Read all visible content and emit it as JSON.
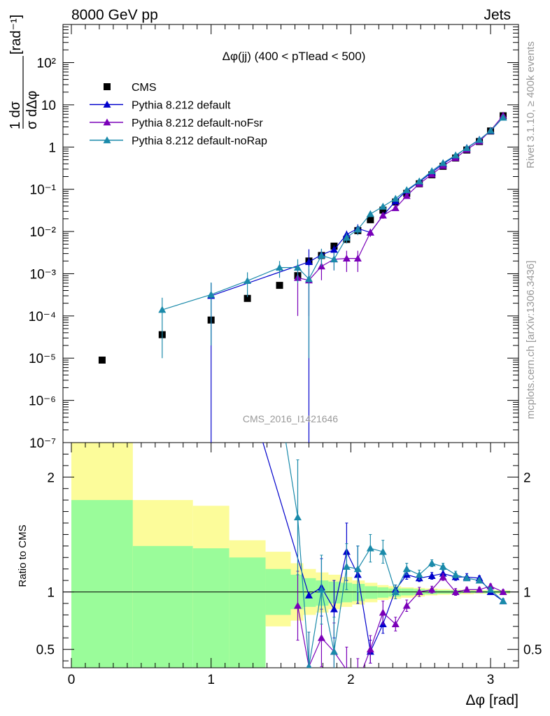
{
  "header": {
    "left": "8000 GeV pp",
    "right": "Jets",
    "side_top": "Rivet 3.1.10, ≥ 400k events",
    "side_bottom": "mcplots.cern.ch [arXiv:1306.3436]",
    "analysis": "CMS_2016_I1421646"
  },
  "colors": {
    "data": "#000000",
    "default": "#0000cc",
    "noFsr": "#7a00b8",
    "noRap": "#1a8aaa",
    "band_inner": "#9afc9a",
    "band_outer": "#fcfc9a"
  },
  "chart_data": {
    "type": "scatter",
    "title": "Δφ(jj) (400 < pTlead <  500)",
    "xlabel": "Δφ [rad]",
    "ylabel_main": "1/σ dσ/dΔφ [rad⁻¹]",
    "ylabel_num": "1 dσ",
    "ylabel_den": "σ dΔφ",
    "ylabel_unit": "[rad⁻¹]",
    "ylabel_ratio": "Ratio to CMS",
    "xlim": [
      -0.06,
      3.2
    ],
    "ylim": [
      1e-07,
      800
    ],
    "ylim_ratio": [
      0.34,
      2.3
    ],
    "yscale": "log",
    "x_ticks": [
      "0",
      "1",
      "2",
      "3"
    ],
    "y_ticks": [
      "10⁻⁷",
      "10⁻⁶",
      "10⁻⁵",
      "10⁻⁴",
      "10⁻³",
      "10⁻²",
      "10⁻¹",
      "1",
      "10",
      "10²"
    ],
    "ratio_ticks": [
      "0.5",
      "1",
      "2"
    ],
    "legend_position": "top-left",
    "series": [
      {
        "name": "CMS",
        "marker": "square",
        "color": "#000000",
        "x": [
          0.22,
          0.65,
          1.0,
          1.26,
          1.49,
          1.62,
          1.7,
          1.79,
          1.88,
          1.97,
          2.05,
          2.14,
          2.23,
          2.32,
          2.4,
          2.49,
          2.58,
          2.66,
          2.75,
          2.83,
          2.92,
          3.0,
          3.09
        ],
        "y": [
          9e-06,
          3.6e-05,
          8e-05,
          0.00026,
          0.00053,
          0.0009,
          0.002,
          0.0027,
          0.0045,
          0.0065,
          0.0105,
          0.019,
          0.032,
          0.05,
          0.08,
          0.135,
          0.22,
          0.35,
          0.55,
          0.85,
          1.35,
          2.4,
          5.5
        ]
      },
      {
        "name": "Pythia 8.212 default",
        "marker": "triangle",
        "color": "#0000cc",
        "x": [
          1.0,
          1.7,
          1.79,
          1.88,
          1.97,
          2.05,
          2.14,
          2.23,
          2.32,
          2.4,
          2.49,
          2.58,
          2.66,
          2.75,
          2.83,
          2.92,
          3.0,
          3.09
        ],
        "y": [
          0.0003,
          0.0019,
          0.0028,
          0.0037,
          0.0085,
          0.0118,
          0.0095,
          0.024,
          0.052,
          0.092,
          0.15,
          0.25,
          0.4,
          0.62,
          0.96,
          1.5,
          2.4,
          5.0
        ],
        "err": [
          0.0003,
          0.0019,
          0.001,
          0.001,
          0.002,
          0.003,
          0.002,
          0.003,
          0.004,
          0.006,
          0.008,
          0.01,
          0.015,
          0.02,
          0.03,
          0.04,
          0.05,
          0.08
        ],
        "ratio": [
          3.8,
          0.97,
          1.04,
          0.85,
          1.35,
          1.15,
          0.48,
          0.72,
          1.02,
          1.15,
          1.12,
          1.14,
          1.16,
          1.13,
          1.13,
          1.12,
          1.0,
          0.92
        ],
        "ratio_err": [
          0,
          0,
          0.25,
          0.25,
          0.25,
          0.25,
          0.1,
          0.08,
          0.04,
          0.04,
          0.03,
          0.03,
          0.03,
          0.03,
          0.03,
          0.02,
          0.02,
          0.02
        ]
      },
      {
        "name": "Pythia 8.212 default-noFsr",
        "marker": "triangle",
        "color": "#7a00b8",
        "x": [
          1.62,
          1.7,
          1.79,
          1.88,
          1.97,
          2.05,
          2.14,
          2.23,
          2.32,
          2.4,
          2.49,
          2.58,
          2.66,
          2.75,
          2.83,
          2.92,
          3.0,
          3.09
        ],
        "y": [
          0.0008,
          0.0007,
          0.0015,
          0.0022,
          0.0023,
          0.0023,
          0.0095,
          0.024,
          0.036,
          0.07,
          0.135,
          0.225,
          0.36,
          0.55,
          0.87,
          1.37,
          2.45,
          5.6
        ],
        "err": [
          0.0007,
          0.0006,
          0.0008,
          0.001,
          0.0012,
          0.0012,
          0.002,
          0.004,
          0.005,
          0.007,
          0.008,
          0.01,
          0.015,
          0.02,
          0.03,
          0.04,
          0.05,
          0.08
        ],
        "ratio": [
          0.88,
          0.35,
          0.6,
          0.48,
          0.32,
          0.22,
          0.5,
          0.82,
          0.72,
          0.88,
          1.0,
          1.02,
          1.13,
          1.0,
          1.02,
          1.02,
          1.05,
          1.0
        ],
        "ratio_err": [
          0.3,
          0.3,
          0.25,
          0.25,
          0.2,
          0.2,
          0.12,
          0.1,
          0.06,
          0.05,
          0.04,
          0.03,
          0.03,
          0.03,
          0.02,
          0.02,
          0.02,
          0.02
        ]
      },
      {
        "name": "Pythia 8.212 default-noRap",
        "marker": "triangle",
        "color": "#1a8aaa",
        "x": [
          0.65,
          1.0,
          1.26,
          1.49,
          1.62,
          1.7,
          1.79,
          1.88,
          1.97,
          2.05,
          2.14,
          2.23,
          2.32,
          2.4,
          2.49,
          2.58,
          2.66,
          2.75,
          2.83,
          2.92,
          3.0,
          3.09
        ],
        "y": [
          0.00014,
          0.00032,
          0.00068,
          0.0014,
          0.0014,
          0.00075,
          0.0027,
          0.0022,
          0.0072,
          0.0112,
          0.026,
          0.039,
          0.06,
          0.096,
          0.155,
          0.27,
          0.42,
          0.64,
          0.95,
          1.48,
          2.45,
          5.0
        ],
        "err": [
          0.00013,
          0.0003,
          0.0004,
          0.0006,
          0.0008,
          0.00074,
          0.0012,
          0.001,
          0.002,
          0.003,
          0.004,
          0.004,
          0.005,
          0.006,
          0.008,
          0.01,
          0.015,
          0.02,
          0.03,
          0.04,
          0.05,
          0.08
        ],
        "ratio": [
          4.0,
          3.5,
          2.6,
          2.65,
          1.65,
          0.35,
          1.02,
          0.48,
          1.22,
          1.2,
          1.38,
          1.35,
          1.0,
          1.2,
          1.15,
          1.25,
          1.22,
          1.15,
          1.12,
          1.1,
          1.02,
          0.92
        ],
        "ratio_err": [
          0,
          0,
          0,
          0,
          0.5,
          0.3,
          0.3,
          0.3,
          0.2,
          0.2,
          0.12,
          0.1,
          0.06,
          0.05,
          0.04,
          0.03,
          0.03,
          0.03,
          0.02,
          0.02,
          0.02,
          0.02
        ]
      }
    ],
    "uncertainty_bands": {
      "edges": [
        0.0,
        0.44,
        0.87,
        1.13,
        1.39,
        1.57,
        1.66,
        1.75,
        1.84,
        1.93,
        2.01,
        2.1,
        2.19,
        2.27,
        2.36,
        2.45,
        2.53,
        2.62,
        2.71,
        2.79,
        2.88,
        2.97,
        3.05,
        3.14
      ],
      "inner_lo": [
        0.34,
        0.34,
        0.34,
        0.34,
        0.8,
        0.85,
        0.87,
        0.88,
        0.9,
        0.91,
        0.92,
        0.94,
        0.95,
        0.96,
        0.97,
        0.975,
        0.98,
        0.985,
        0.985,
        0.99,
        0.99,
        0.99,
        0.99
      ],
      "inner_hi": [
        1.8,
        1.4,
        1.38,
        1.3,
        1.2,
        1.15,
        1.12,
        1.1,
        1.09,
        1.08,
        1.07,
        1.05,
        1.04,
        1.03,
        1.03,
        1.025,
        1.02,
        1.015,
        1.015,
        1.01,
        1.01,
        1.01,
        1.01
      ],
      "outer_lo": [
        0.34,
        0.66,
        0.62,
        0.34,
        0.7,
        0.75,
        0.8,
        0.82,
        0.85,
        0.87,
        0.89,
        0.91,
        0.93,
        0.94,
        0.95,
        0.96,
        0.97,
        0.975,
        0.98,
        0.98,
        0.985,
        0.985,
        0.985
      ],
      "outer_hi": [
        2.3,
        1.8,
        1.75,
        1.45,
        1.35,
        1.25,
        1.2,
        1.17,
        1.15,
        1.13,
        1.1,
        1.08,
        1.06,
        1.05,
        1.04,
        1.035,
        1.03,
        1.025,
        1.02,
        1.02,
        1.015,
        1.015,
        1.015
      ]
    }
  }
}
